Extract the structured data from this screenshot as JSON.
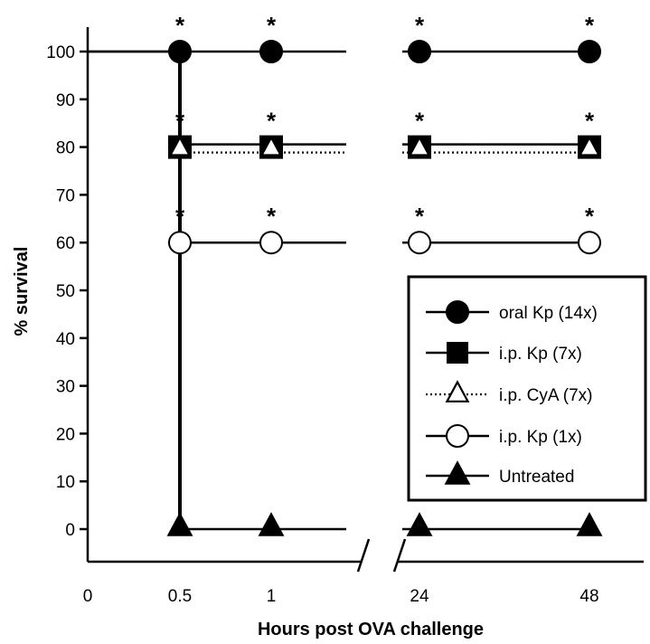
{
  "chart_data": {
    "type": "line",
    "xlabel": "Hours post OVA challenge",
    "ylabel": "% survival",
    "ylim": [
      0,
      100
    ],
    "yticks": [
      "0",
      "10",
      "20",
      "30",
      "40",
      "50",
      "60",
      "70",
      "80",
      "90",
      "100"
    ],
    "xticks": [
      "0",
      "0.5",
      "1",
      "24",
      "48"
    ],
    "axis_break": "between 1 and 24",
    "significance_marker": "*",
    "series": [
      {
        "name": "oral Kp (14x)",
        "marker": "filled-circle",
        "line": "solid",
        "x": [
          "0",
          "0.5",
          "1",
          "24",
          "48"
        ],
        "values": [
          100,
          100,
          100,
          100,
          100
        ],
        "significant_at": [
          "0.5",
          "1",
          "24",
          "48"
        ]
      },
      {
        "name": "i.p. Kp (7x)",
        "marker": "filled-square",
        "line": "solid",
        "x": [
          "0",
          "0.5",
          "1",
          "24",
          "48"
        ],
        "values": [
          100,
          80,
          80,
          80,
          80
        ],
        "significant_at": [
          "0.5",
          "1",
          "24",
          "48"
        ]
      },
      {
        "name": "i.p. CyA (7x)",
        "marker": "open-triangle",
        "line": "dotted",
        "x": [
          "0",
          "0.5",
          "1",
          "24",
          "48"
        ],
        "values": [
          100,
          80,
          80,
          80,
          80
        ],
        "significant_at": []
      },
      {
        "name": "i.p. Kp (1x)",
        "marker": "open-circle",
        "line": "solid",
        "x": [
          "0",
          "0.5",
          "1",
          "24",
          "48"
        ],
        "values": [
          100,
          60,
          60,
          60,
          60
        ],
        "significant_at": [
          "0.5",
          "1",
          "24",
          "48"
        ]
      },
      {
        "name": "Untreated",
        "marker": "filled-triangle",
        "line": "solid",
        "x": [
          "0",
          "0.5",
          "1",
          "24",
          "48"
        ],
        "values": [
          100,
          0,
          0,
          0,
          0
        ],
        "significant_at": []
      }
    ],
    "legend_position": "right"
  }
}
